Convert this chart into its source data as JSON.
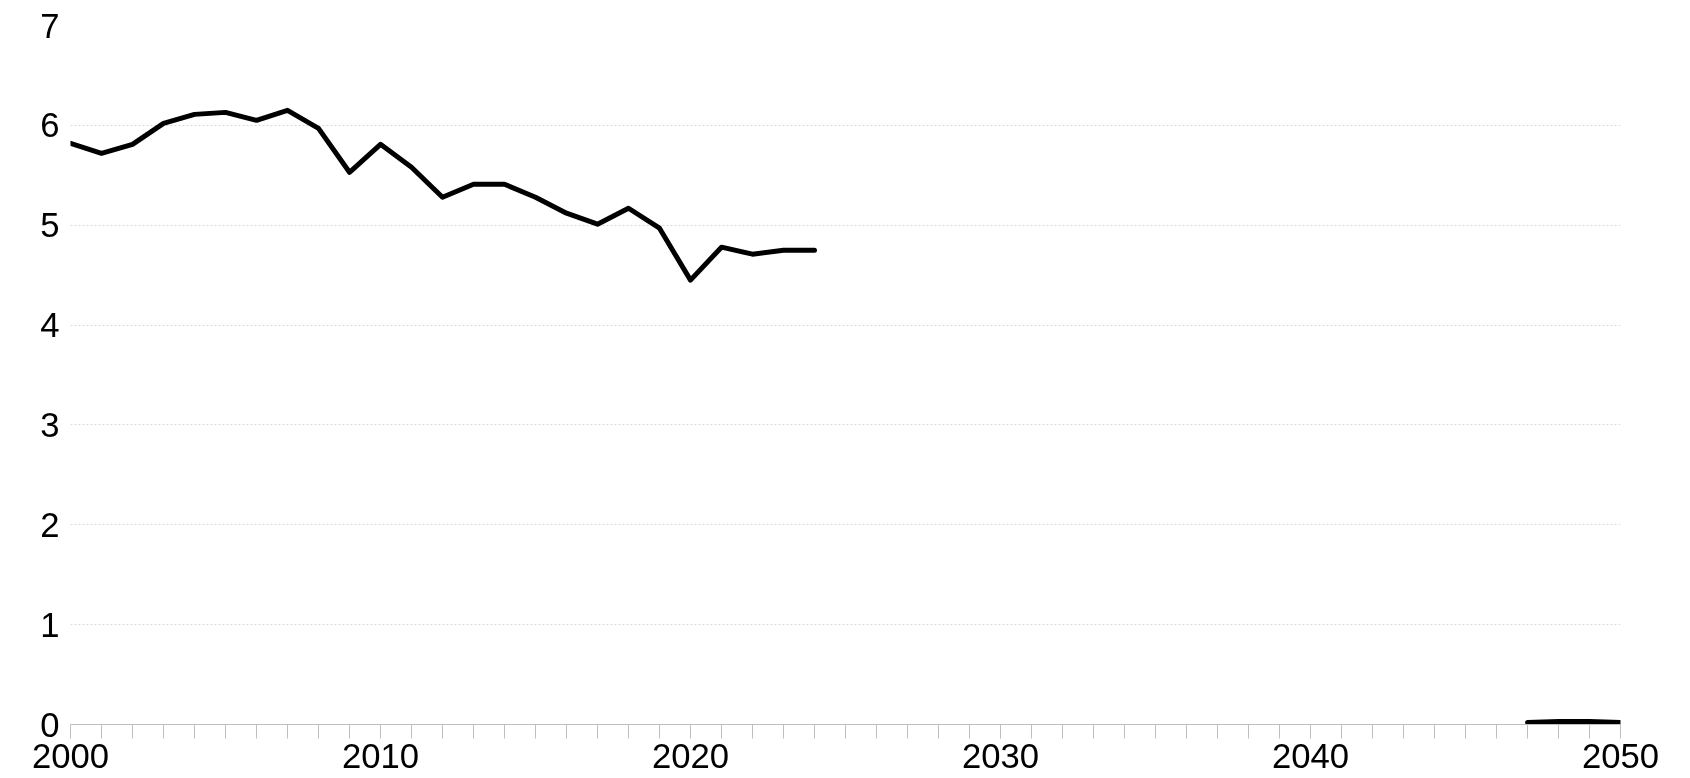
{
  "chart_data": {
    "type": "line",
    "x": [
      2000,
      2001,
      2002,
      2003,
      2004,
      2005,
      2006,
      2007,
      2008,
      2009,
      2010,
      2011,
      2012,
      2013,
      2014,
      2015,
      2016,
      2017,
      2018,
      2019,
      2020,
      2021,
      2022,
      2023,
      2024
    ],
    "series": [
      {
        "color": "#000000",
        "values": [
          5.82,
          5.72,
          5.81,
          6.02,
          6.11,
          6.13,
          6.05,
          6.15,
          5.97,
          5.53,
          5.81,
          5.58,
          5.28,
          5.41,
          5.41,
          5.28,
          5.12,
          5.01,
          5.17,
          4.97,
          4.45,
          4.78,
          4.71,
          4.75,
          4.75
        ]
      },
      {
        "color": "#000000",
        "x": [
          2047,
          2048,
          2049,
          2050
        ],
        "values": [
          0.02,
          0.03,
          0.03,
          0.02
        ]
      }
    ],
    "xlim": [
      2000,
      2050
    ],
    "xticks": [
      2000,
      2010,
      2020,
      2030,
      2040,
      2050
    ],
    "ylim": [
      0,
      7
    ],
    "yticks": [
      0,
      1,
      2,
      3,
      4,
      5,
      6,
      7
    ],
    "grid": "y"
  }
}
